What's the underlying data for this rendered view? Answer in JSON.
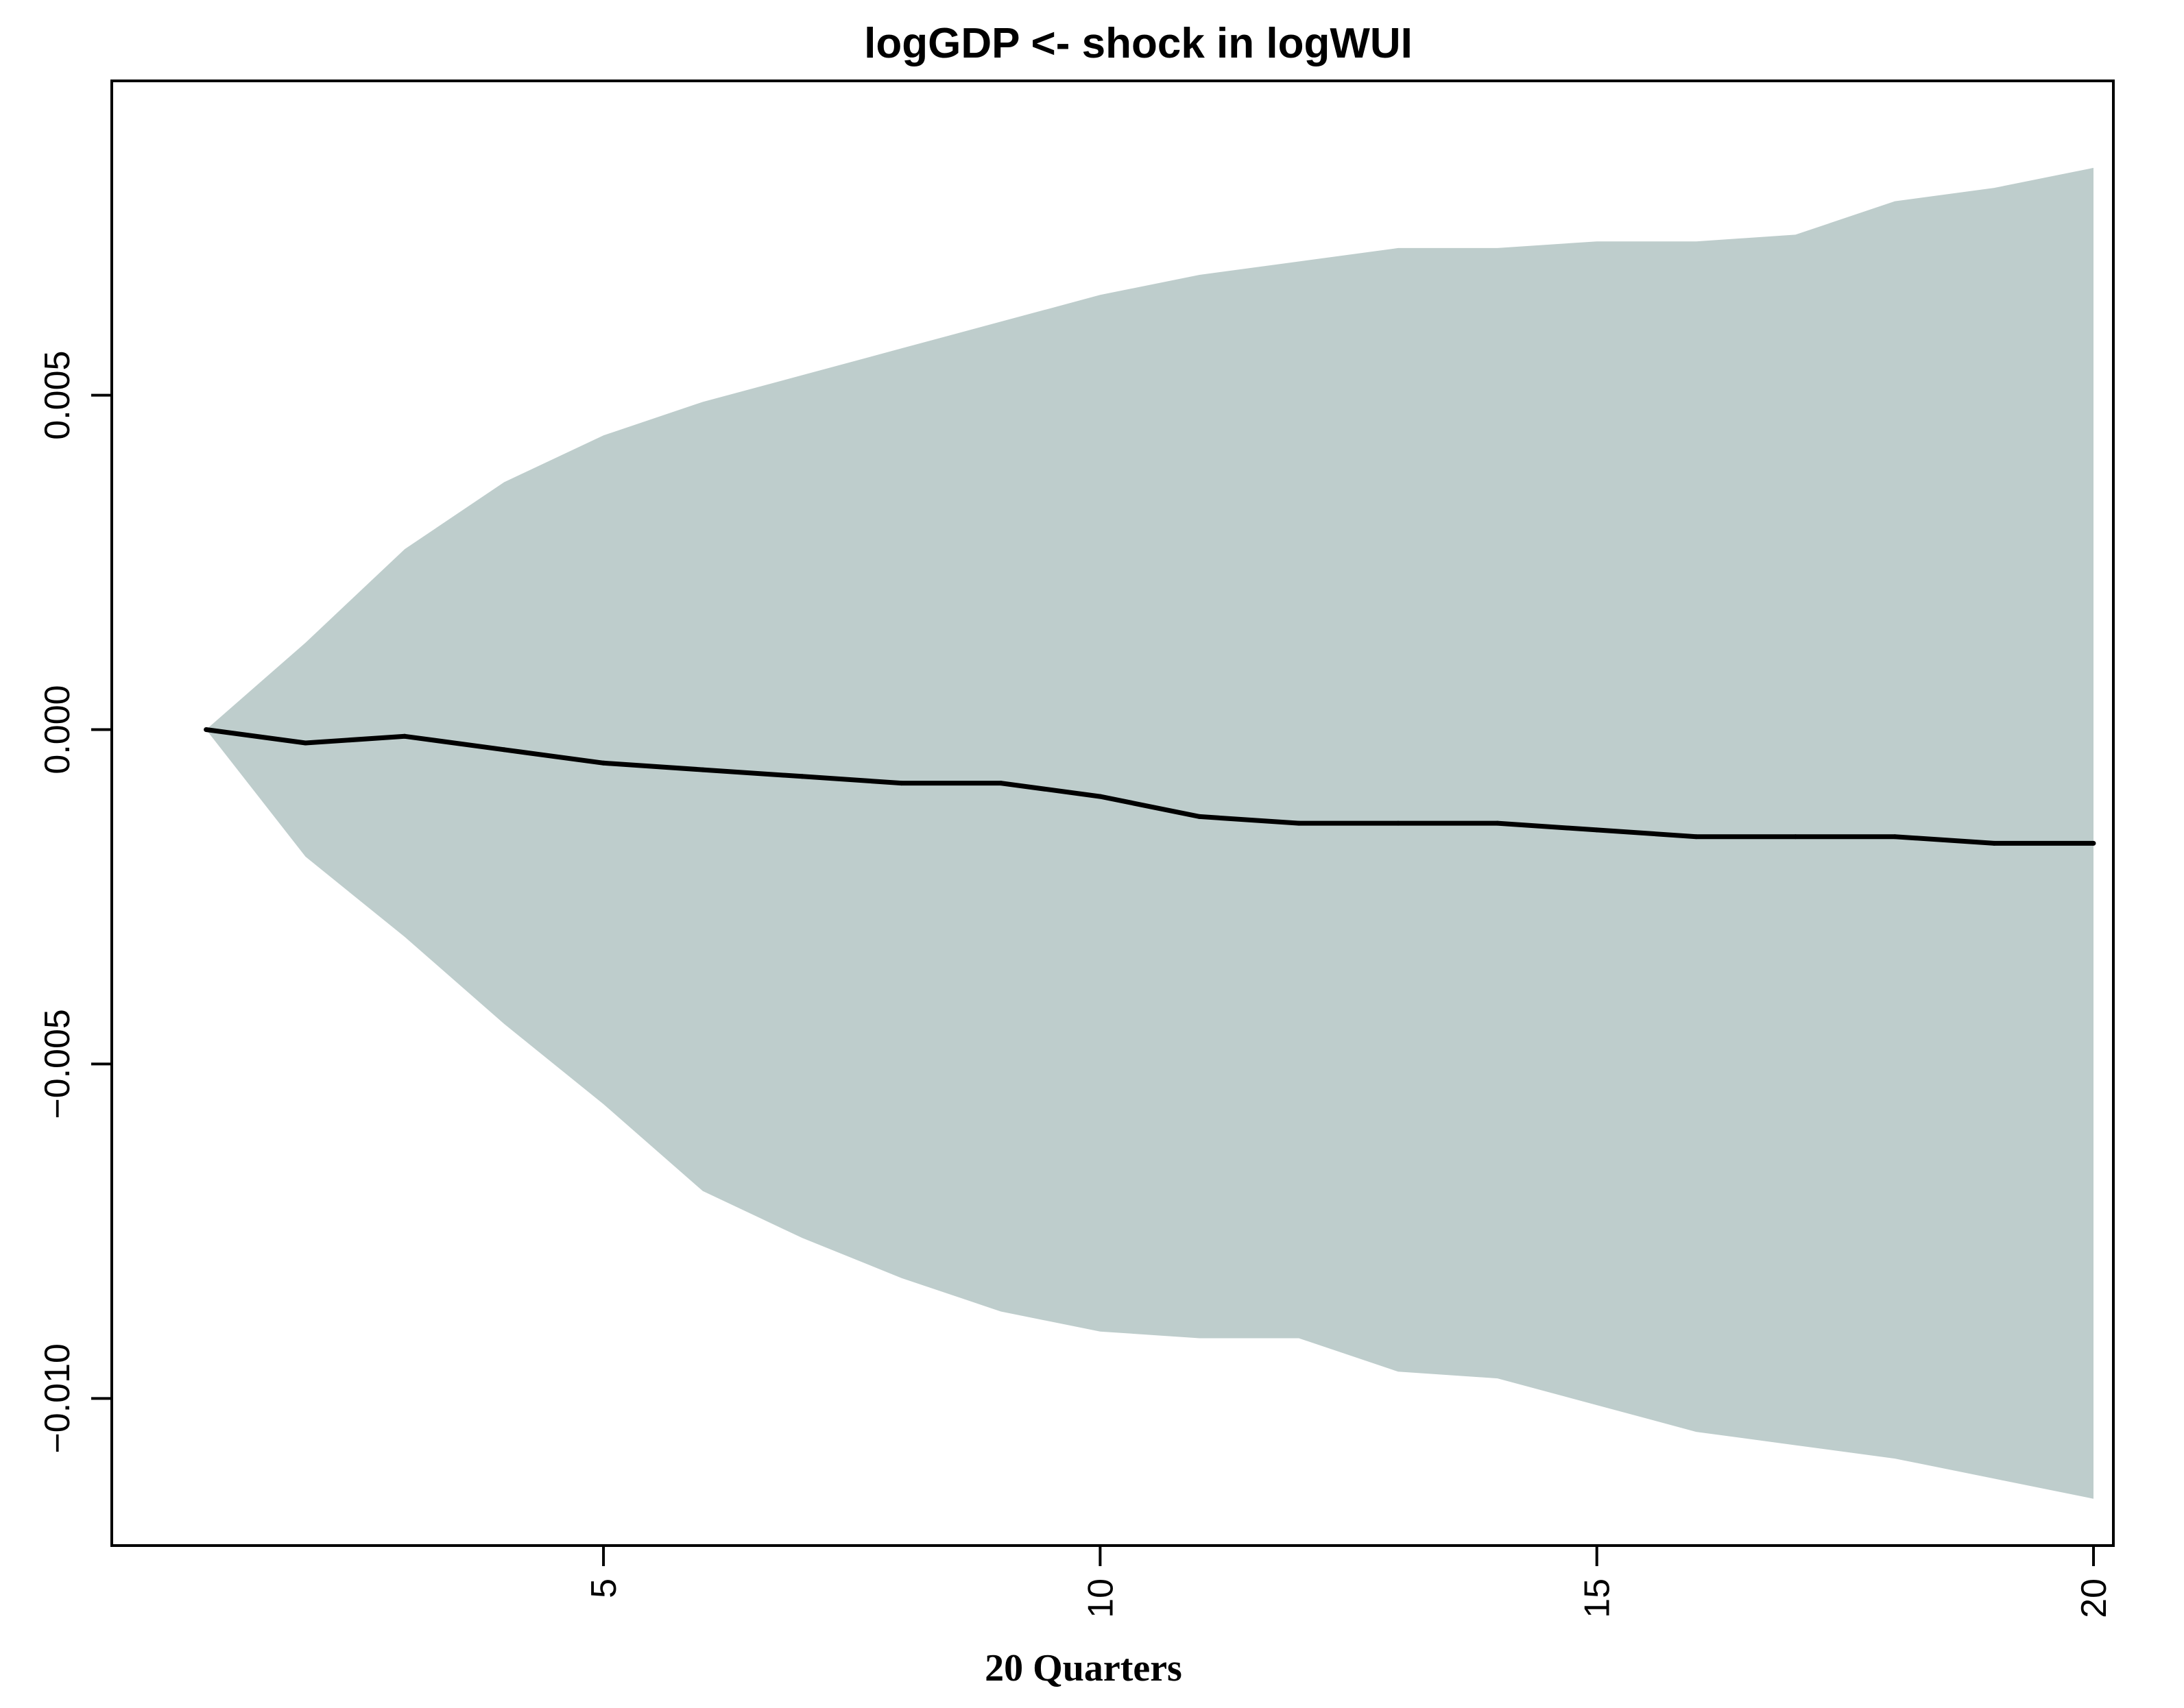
{
  "chart_data": {
    "type": "line",
    "title": "logGDP <- shock in logWUI",
    "xlabel": "20 Quarters",
    "ylabel": "",
    "xlim": [
      0.05,
      20.2
    ],
    "ylim": [
      -0.0122,
      0.0097
    ],
    "x_ticks": [
      5,
      10,
      15,
      20
    ],
    "x_tick_labels": [
      "5",
      "10",
      "15",
      "20"
    ],
    "y_ticks": [
      -0.01,
      -0.005,
      0.0,
      0.005
    ],
    "y_tick_labels": [
      "−0.010",
      "−0.005",
      "0.000",
      "0.005"
    ],
    "grid": false,
    "band_color": "#BECDCC",
    "line_color": "#000000",
    "x": [
      1,
      2,
      3,
      4,
      5,
      6,
      7,
      8,
      9,
      10,
      11,
      12,
      13,
      14,
      15,
      16,
      17,
      18,
      19,
      20
    ],
    "series": [
      {
        "values": [
          0.0,
          -0.0002,
          -0.0001,
          -0.0003,
          -0.0005,
          -0.0006,
          -0.0007,
          -0.0008,
          -0.0008,
          -0.001,
          -0.0013,
          -0.0014,
          -0.0014,
          -0.0014,
          -0.0015,
          -0.0016,
          -0.0016,
          -0.0016,
          -0.0017,
          -0.0017
        ]
      }
    ],
    "band": {
      "upper": [
        0.0,
        0.0013,
        0.0027,
        0.0037,
        0.0044,
        0.0049,
        0.0053,
        0.0057,
        0.0061,
        0.0065,
        0.0068,
        0.007,
        0.0072,
        0.0072,
        0.0073,
        0.0073,
        0.0074,
        0.0079,
        0.0081,
        0.0084
      ],
      "lower": [
        0.0,
        -0.0019,
        -0.0031,
        -0.0044,
        -0.0056,
        -0.0069,
        -0.0076,
        -0.0082,
        -0.0087,
        -0.009,
        -0.0091,
        -0.0091,
        -0.0096,
        -0.0097,
        -0.0101,
        -0.0105,
        -0.0107,
        -0.0109,
        -0.0112,
        -0.0115
      ]
    }
  }
}
